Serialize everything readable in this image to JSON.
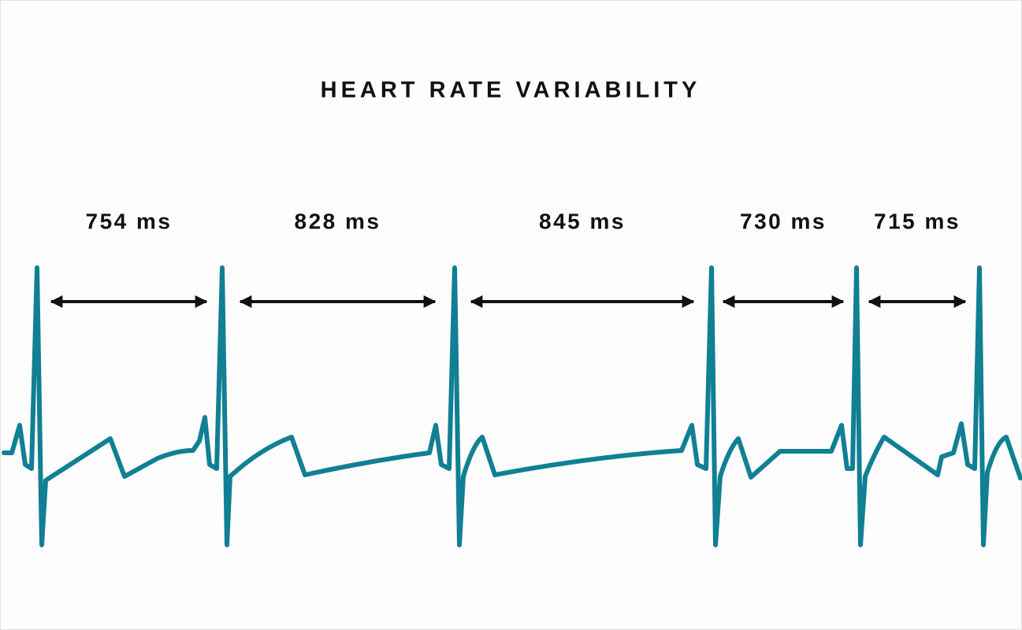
{
  "title": "HEART RATE VARIABILITY",
  "intervals": [
    {
      "label": "754 ms"
    },
    {
      "label": "828 ms"
    },
    {
      "label": "845 ms"
    },
    {
      "label": "730 ms"
    },
    {
      "label": "715 ms"
    }
  ]
}
